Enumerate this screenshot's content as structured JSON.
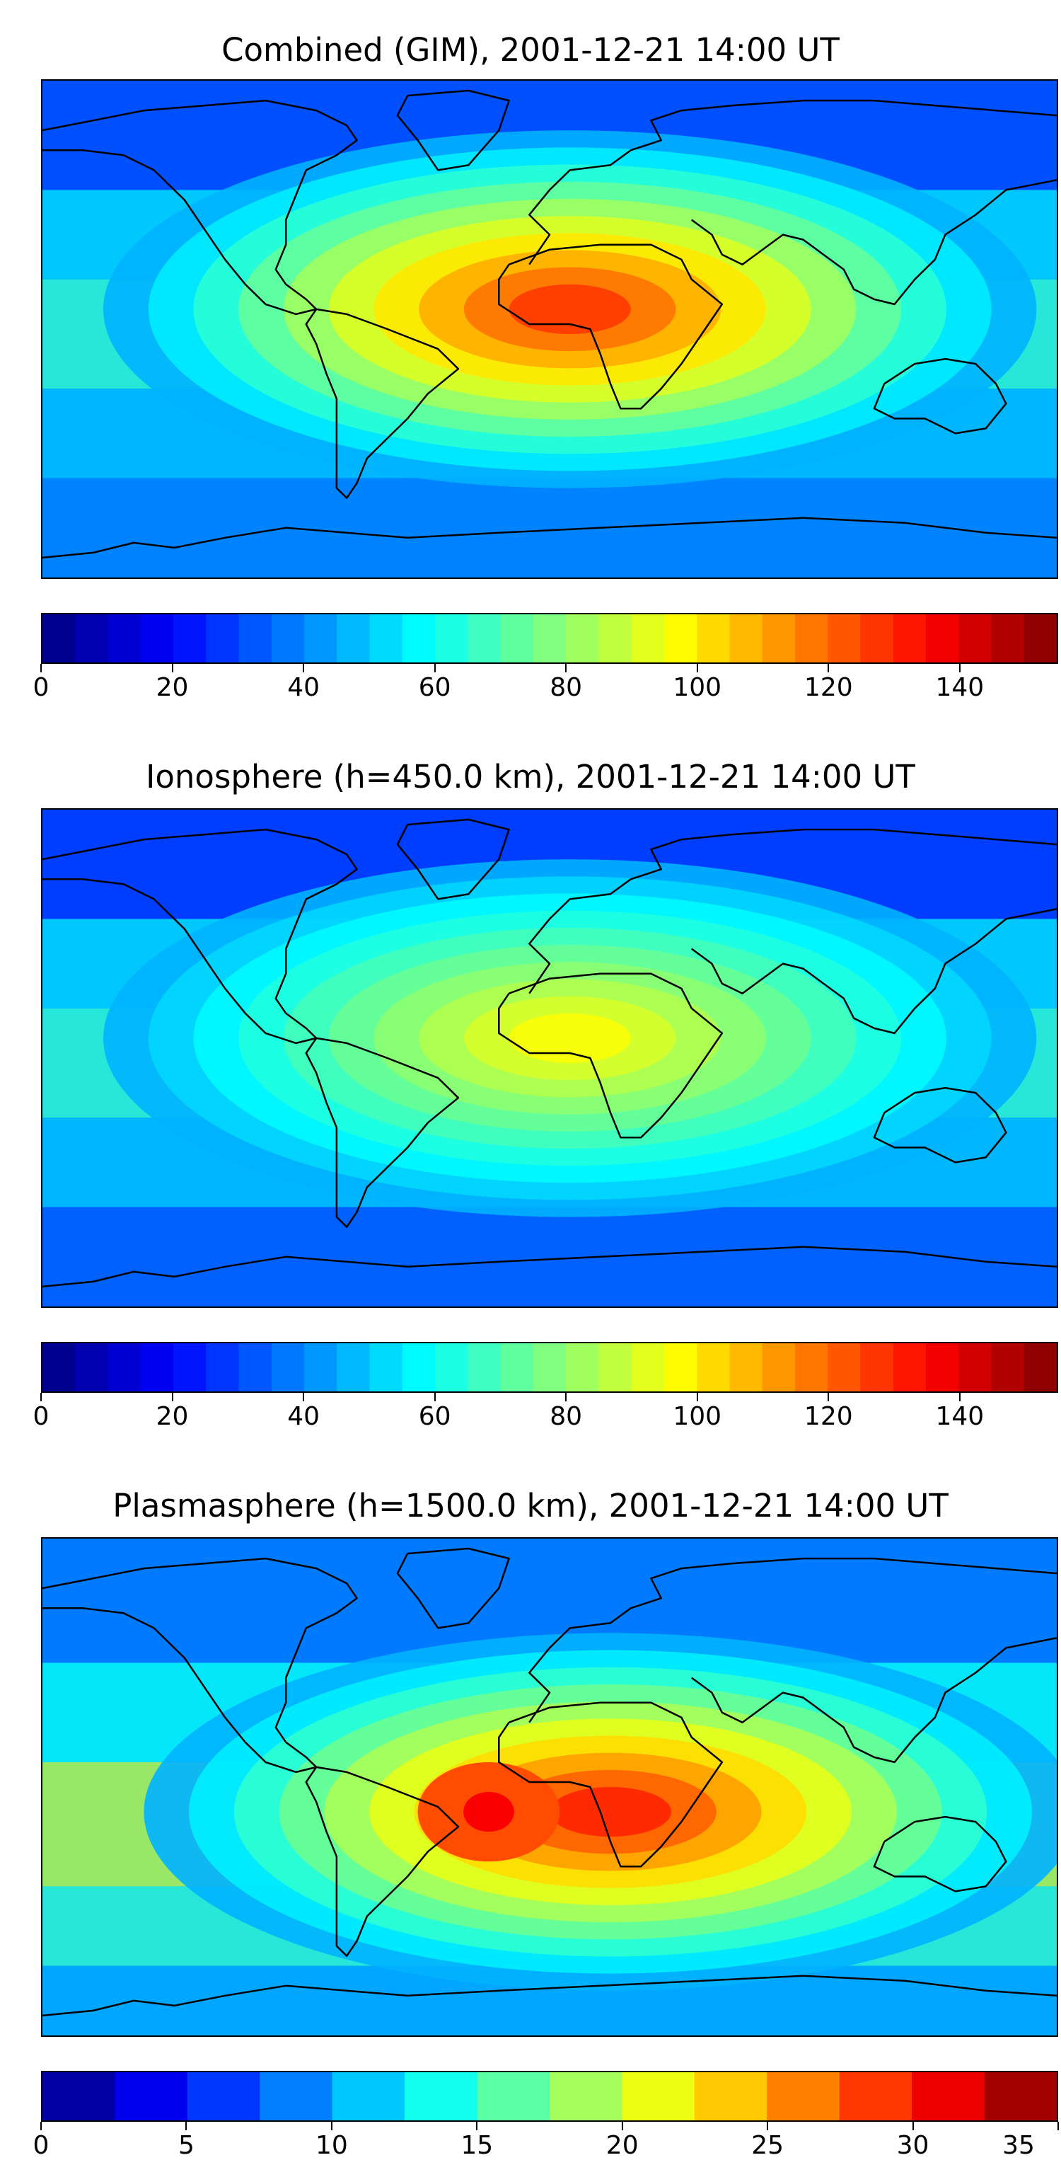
{
  "figure": {
    "panels": [
      {
        "id": "combined",
        "title": "Combined (GIM), 2001-12-21 14:00 UT",
        "colorbar": {
          "min": 0,
          "max": 155,
          "step": 5,
          "ticks": [
            "0",
            "20",
            "40",
            "60",
            "80",
            "100",
            "120",
            "140"
          ],
          "tick_values": [
            0,
            20,
            40,
            60,
            80,
            100,
            120,
            140
          ]
        },
        "features": {
          "peak_level": 0.82,
          "north_pole_level": 0.1,
          "south_level": 0.18,
          "plasma": false
        }
      },
      {
        "id": "ionosphere",
        "title": "Ionosphere  (h=450.0 km), 2001-12-21 14:00 UT",
        "colorbar": {
          "min": 0,
          "max": 155,
          "step": 5,
          "ticks": [
            "0",
            "20",
            "40",
            "60",
            "80",
            "100",
            "120",
            "140"
          ],
          "tick_values": [
            0,
            20,
            40,
            60,
            80,
            100,
            120,
            140
          ]
        },
        "features": {
          "peak_level": 0.62,
          "north_pole_level": 0.08,
          "south_level": 0.14,
          "plasma": false
        }
      },
      {
        "id": "plasmasphere",
        "title": "Plasmasphere (h=1500.0 km), 2001-12-21 14:00 UT",
        "colorbar": {
          "min": 0,
          "max": 35,
          "step": 2.5,
          "ticks": [
            "0",
            "5",
            "10",
            "15",
            "20",
            "25",
            "30",
            "35"
          ],
          "tick_values": [
            0,
            5,
            10,
            15,
            20,
            25,
            30,
            35
          ]
        },
        "features": {
          "peak_level": 0.84,
          "north_pole_level": 0.22,
          "south_level": 0.35,
          "plasma": true
        }
      }
    ],
    "colormap": "jet"
  }
}
